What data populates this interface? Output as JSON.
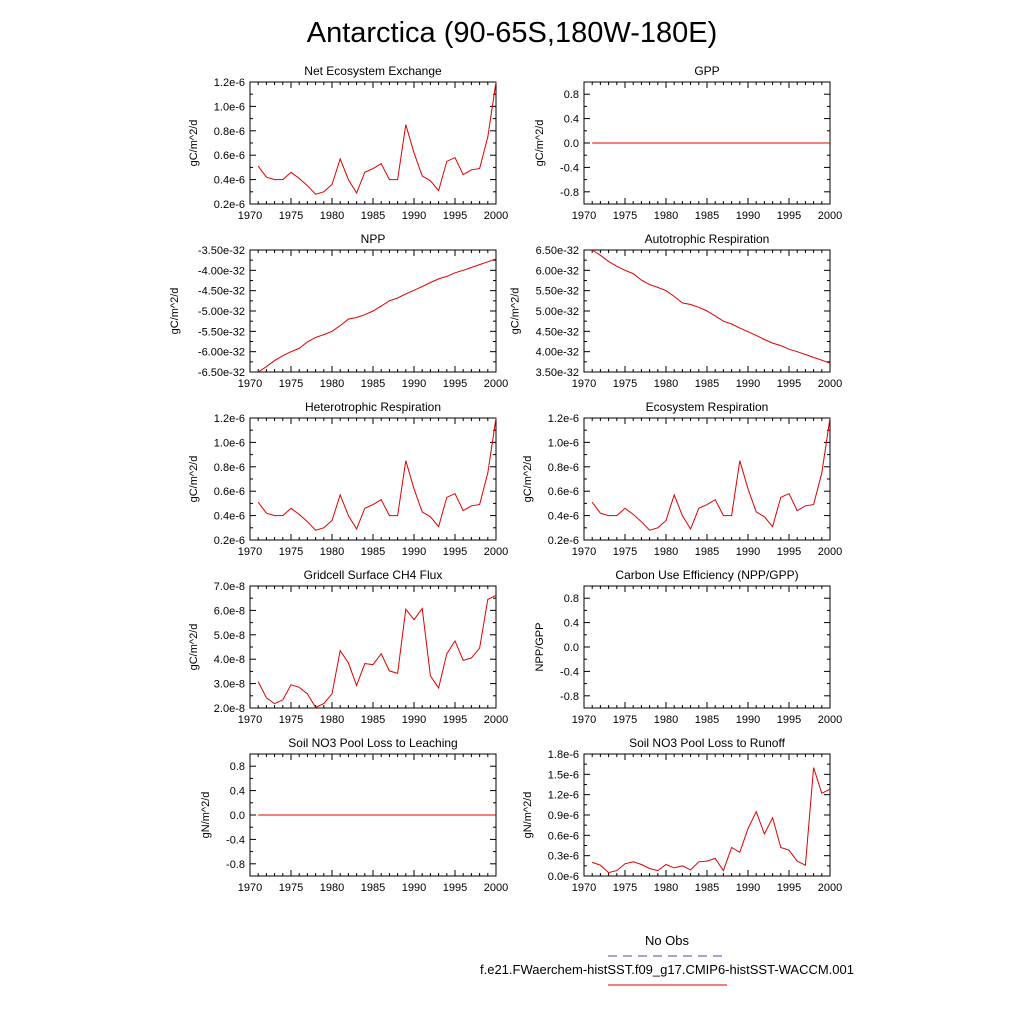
{
  "figure": {
    "title": "Antarctica (90-65S,180W-180E)"
  },
  "legend": [
    {
      "label": "No Obs",
      "color": "#4444cc",
      "dash": true
    },
    {
      "label": "f.e21.FWaerchem-histSST.f09_g17.CMIP6-histSST-WACCM.001",
      "color": "#dd0000",
      "dash": false
    }
  ],
  "series_color": "#dd0000",
  "chart_data": [
    {
      "type": "line",
      "title": "Net Ecosystem Exchange",
      "ylabel": "gC/m^2/d",
      "xlim": [
        1970,
        2000
      ],
      "xticks": [
        1970,
        1975,
        1980,
        1985,
        1990,
        1995,
        2000
      ],
      "ylim": [
        2e-07,
        1.2e-06
      ],
      "yticks": [
        2e-07,
        4e-07,
        6e-07,
        8e-07,
        1e-06,
        1.2e-06
      ],
      "ytick_labels": [
        "0.2e-6",
        "0.4e-6",
        "0.6e-6",
        "0.8e-6",
        "1.0e-6",
        "1.2e-6"
      ],
      "x": [
        1971,
        1972,
        1973,
        1974,
        1975,
        1976,
        1977,
        1978,
        1979,
        1980,
        1981,
        1982,
        1983,
        1984,
        1985,
        1986,
        1987,
        1988,
        1989,
        1990,
        1991,
        1992,
        1993,
        1994,
        1995,
        1996,
        1997,
        1998,
        1999,
        2000
      ],
      "y": [
        5.1e-07,
        4.2e-07,
        4e-07,
        4e-07,
        4.6e-07,
        4.1e-07,
        3.5e-07,
        2.8e-07,
        3e-07,
        3.6e-07,
        5.7e-07,
        4e-07,
        2.9e-07,
        4.6e-07,
        4.9e-07,
        5.3e-07,
        4e-07,
        4e-07,
        8.5e-07,
        6.2e-07,
        4.3e-07,
        3.9e-07,
        3.1e-07,
        5.5e-07,
        5.8e-07,
        4.4e-07,
        4.8e-07,
        4.9e-07,
        7.5e-07,
        1.2e-06
      ]
    },
    {
      "type": "line",
      "title": "GPP",
      "ylabel": "gC/m^2/d",
      "xlim": [
        1970,
        2000
      ],
      "xticks": [
        1970,
        1975,
        1980,
        1985,
        1990,
        1995,
        2000
      ],
      "ylim": [
        -1.0,
        1.0
      ],
      "yticks": [
        -0.8,
        -0.4,
        0.0,
        0.4,
        0.8
      ],
      "ytick_labels": [
        "-0.8",
        "-0.4",
        "0.0",
        "0.4",
        "0.8"
      ],
      "x": [
        1971,
        2000
      ],
      "y": [
        0,
        0
      ]
    },
    {
      "type": "line",
      "title": "NPP",
      "ylabel": "gC/m^2/d",
      "xlim": [
        1970,
        2000
      ],
      "xticks": [
        1970,
        1975,
        1980,
        1985,
        1990,
        1995,
        2000
      ],
      "ylim": [
        -6.5e-32,
        -3.5e-32
      ],
      "yticks": [
        -6.5e-32,
        -6e-32,
        -5.5e-32,
        -5e-32,
        -4.5e-32,
        -4e-32,
        -3.5e-32
      ],
      "ytick_labels": [
        "-6.50e-32",
        "-6.00e-32",
        "-5.50e-32",
        "-5.00e-32",
        "-4.50e-32",
        "-4.00e-32",
        "-3.50e-32"
      ],
      "x": [
        1971,
        1972,
        1973,
        1974,
        1975,
        1976,
        1977,
        1978,
        1979,
        1980,
        1981,
        1982,
        1983,
        1984,
        1985,
        1986,
        1987,
        1988,
        1989,
        1990,
        1991,
        1992,
        1993,
        1994,
        1995,
        1996,
        1997,
        1998,
        1999,
        2000
      ],
      "y": [
        -6.5e-32,
        -6.37e-32,
        -6.22e-32,
        -6.1e-32,
        -6e-32,
        -5.92e-32,
        -5.76e-32,
        -5.65e-32,
        -5.58e-32,
        -5.5e-32,
        -5.36e-32,
        -5.2e-32,
        -5.16e-32,
        -5.09e-32,
        -5e-32,
        -4.88e-32,
        -4.75e-32,
        -4.68e-32,
        -4.58e-32,
        -4.49e-32,
        -4.4e-32,
        -4.3e-32,
        -4.21e-32,
        -4.15e-32,
        -4.06e-32,
        -4e-32,
        -3.93e-32,
        -3.86e-32,
        -3.79e-32,
        -3.72e-32
      ]
    },
    {
      "type": "line",
      "title": "Autotrophic Respiration",
      "ylabel": "gC/m^2/d",
      "xlim": [
        1970,
        2000
      ],
      "xticks": [
        1970,
        1975,
        1980,
        1985,
        1990,
        1995,
        2000
      ],
      "ylim": [
        3.5e-32,
        6.5e-32
      ],
      "yticks": [
        3.5e-32,
        4e-32,
        4.5e-32,
        5e-32,
        5.5e-32,
        6e-32,
        6.5e-32
      ],
      "ytick_labels": [
        "3.50e-32",
        "4.00e-32",
        "4.50e-32",
        "5.00e-32",
        "5.50e-32",
        "6.00e-32",
        "6.50e-32"
      ],
      "x": [
        1971,
        1972,
        1973,
        1974,
        1975,
        1976,
        1977,
        1978,
        1979,
        1980,
        1981,
        1982,
        1983,
        1984,
        1985,
        1986,
        1987,
        1988,
        1989,
        1990,
        1991,
        1992,
        1993,
        1994,
        1995,
        1996,
        1997,
        1998,
        1999,
        2000
      ],
      "y": [
        6.5e-32,
        6.37e-32,
        6.22e-32,
        6.1e-32,
        6e-32,
        5.92e-32,
        5.76e-32,
        5.65e-32,
        5.58e-32,
        5.5e-32,
        5.36e-32,
        5.2e-32,
        5.16e-32,
        5.09e-32,
        5e-32,
        4.88e-32,
        4.75e-32,
        4.68e-32,
        4.58e-32,
        4.49e-32,
        4.4e-32,
        4.3e-32,
        4.21e-32,
        4.15e-32,
        4.06e-32,
        4e-32,
        3.93e-32,
        3.86e-32,
        3.79e-32,
        3.72e-32
      ]
    },
    {
      "type": "line",
      "title": "Heterotrophic Respiration",
      "ylabel": "gC/m^2/d",
      "xlim": [
        1970,
        2000
      ],
      "xticks": [
        1970,
        1975,
        1980,
        1985,
        1990,
        1995,
        2000
      ],
      "ylim": [
        2e-07,
        1.2e-06
      ],
      "yticks": [
        2e-07,
        4e-07,
        6e-07,
        8e-07,
        1e-06,
        1.2e-06
      ],
      "ytick_labels": [
        "0.2e-6",
        "0.4e-6",
        "0.6e-6",
        "0.8e-6",
        "1.0e-6",
        "1.2e-6"
      ],
      "x": [
        1971,
        1972,
        1973,
        1974,
        1975,
        1976,
        1977,
        1978,
        1979,
        1980,
        1981,
        1982,
        1983,
        1984,
        1985,
        1986,
        1987,
        1988,
        1989,
        1990,
        1991,
        1992,
        1993,
        1994,
        1995,
        1996,
        1997,
        1998,
        1999,
        2000
      ],
      "y": [
        5.1e-07,
        4.2e-07,
        4e-07,
        4e-07,
        4.6e-07,
        4.1e-07,
        3.5e-07,
        2.8e-07,
        3e-07,
        3.6e-07,
        5.7e-07,
        4e-07,
        2.9e-07,
        4.6e-07,
        4.9e-07,
        5.3e-07,
        4e-07,
        4e-07,
        8.5e-07,
        6.2e-07,
        4.3e-07,
        3.9e-07,
        3.1e-07,
        5.5e-07,
        5.8e-07,
        4.4e-07,
        4.8e-07,
        4.9e-07,
        7.5e-07,
        1.2e-06
      ]
    },
    {
      "type": "line",
      "title": "Ecosystem Respiration",
      "ylabel": "gC/m^2/d",
      "xlim": [
        1970,
        2000
      ],
      "xticks": [
        1970,
        1975,
        1980,
        1985,
        1990,
        1995,
        2000
      ],
      "ylim": [
        2e-07,
        1.2e-06
      ],
      "yticks": [
        2e-07,
        4e-07,
        6e-07,
        8e-07,
        1e-06,
        1.2e-06
      ],
      "ytick_labels": [
        "0.2e-6",
        "0.4e-6",
        "0.6e-6",
        "0.8e-6",
        "1.0e-6",
        "1.2e-6"
      ],
      "x": [
        1971,
        1972,
        1973,
        1974,
        1975,
        1976,
        1977,
        1978,
        1979,
        1980,
        1981,
        1982,
        1983,
        1984,
        1985,
        1986,
        1987,
        1988,
        1989,
        1990,
        1991,
        1992,
        1993,
        1994,
        1995,
        1996,
        1997,
        1998,
        1999,
        2000
      ],
      "y": [
        5.1e-07,
        4.2e-07,
        4e-07,
        4e-07,
        4.6e-07,
        4.1e-07,
        3.5e-07,
        2.8e-07,
        3e-07,
        3.6e-07,
        5.7e-07,
        4e-07,
        2.9e-07,
        4.6e-07,
        4.9e-07,
        5.3e-07,
        4e-07,
        4e-07,
        8.5e-07,
        6.2e-07,
        4.3e-07,
        3.9e-07,
        3.1e-07,
        5.5e-07,
        5.8e-07,
        4.4e-07,
        4.8e-07,
        4.9e-07,
        7.5e-07,
        1.2e-06
      ]
    },
    {
      "type": "line",
      "title": "Gridcell Surface CH4 Flux",
      "ylabel": "gC/m^2/d",
      "xlim": [
        1970,
        2000
      ],
      "xticks": [
        1970,
        1975,
        1980,
        1985,
        1990,
        1995,
        2000
      ],
      "ylim": [
        2e-08,
        7e-08
      ],
      "yticks": [
        2e-08,
        3e-08,
        4e-08,
        5e-08,
        6e-08,
        7e-08
      ],
      "ytick_labels": [
        "2.0e-8",
        "3.0e-8",
        "4.0e-8",
        "5.0e-8",
        "6.0e-8",
        "7.0e-8"
      ],
      "x": [
        1971,
        1972,
        1973,
        1974,
        1975,
        1976,
        1977,
        1978,
        1979,
        1980,
        1981,
        1982,
        1983,
        1984,
        1985,
        1986,
        1987,
        1988,
        1989,
        1990,
        1991,
        1992,
        1993,
        1994,
        1995,
        1996,
        1997,
        1998,
        1999,
        2000
      ],
      "y": [
        3.08e-08,
        2.42e-08,
        2.18e-08,
        2.33e-08,
        2.95e-08,
        2.85e-08,
        2.58e-08,
        2.02e-08,
        2.18e-08,
        2.58e-08,
        4.35e-08,
        3.85e-08,
        2.92e-08,
        3.82e-08,
        3.78e-08,
        4.22e-08,
        3.52e-08,
        3.42e-08,
        6.05e-08,
        5.62e-08,
        6.08e-08,
        3.32e-08,
        2.82e-08,
        4.22e-08,
        4.75e-08,
        3.95e-08,
        4.05e-08,
        4.45e-08,
        6.45e-08,
        6.62e-08
      ]
    },
    {
      "type": "line",
      "title": "Carbon Use Efficiency (NPP/GPP)",
      "ylabel": "NPP/GPP",
      "xlim": [
        1970,
        2000
      ],
      "xticks": [
        1970,
        1975,
        1980,
        1985,
        1990,
        1995,
        2000
      ],
      "ylim": [
        -1.0,
        1.0
      ],
      "yticks": [
        -0.8,
        -0.4,
        0.0,
        0.4,
        0.8
      ],
      "ytick_labels": [
        "-0.8",
        "-0.4",
        "0.0",
        "0.4",
        "0.8"
      ],
      "x": [],
      "y": []
    },
    {
      "type": "line",
      "title": "Soil NO3 Pool Loss to Leaching",
      "ylabel": "gN/m^2/d",
      "xlim": [
        1970,
        2000
      ],
      "xticks": [
        1970,
        1975,
        1980,
        1985,
        1990,
        1995,
        2000
      ],
      "ylim": [
        -1.0,
        1.0
      ],
      "yticks": [
        -0.8,
        -0.4,
        0.0,
        0.4,
        0.8
      ],
      "ytick_labels": [
        "-0.8",
        "-0.4",
        "0.0",
        "0.4",
        "0.8"
      ],
      "x": [
        1971,
        2000
      ],
      "y": [
        0,
        0
      ]
    },
    {
      "type": "line",
      "title": "Soil NO3 Pool Loss to Runoff",
      "ylabel": "gN/m^2/d",
      "xlim": [
        1970,
        2000
      ],
      "xticks": [
        1970,
        1975,
        1980,
        1985,
        1990,
        1995,
        2000
      ],
      "ylim": [
        0.0,
        1.8e-06
      ],
      "yticks": [
        0.0,
        3e-07,
        6e-07,
        9e-07,
        1.2e-06,
        1.5e-06,
        1.8e-06
      ],
      "ytick_labels": [
        "0.0e-6",
        "0.3e-6",
        "0.6e-6",
        "0.9e-6",
        "1.2e-6",
        "1.5e-6",
        "1.8e-6"
      ],
      "x": [
        1971,
        1972,
        1973,
        1974,
        1975,
        1976,
        1977,
        1978,
        1979,
        1980,
        1981,
        1982,
        1983,
        1984,
        1985,
        1986,
        1987,
        1988,
        1989,
        1990,
        1991,
        1992,
        1993,
        1994,
        1995,
        1996,
        1997,
        1998,
        1999,
        2000
      ],
      "y": [
        2e-07,
        1.6e-07,
        5e-08,
        8e-08,
        1.8e-07,
        2.1e-07,
        1.7e-07,
        1.1e-07,
        8e-08,
        1.7e-07,
        1.2e-07,
        1.5e-07,
        9e-08,
        2.1e-07,
        2.2e-07,
        2.6e-07,
        8e-08,
        4.2e-07,
        3.5e-07,
        7e-07,
        9.5e-07,
        6.2e-07,
        8.6e-07,
        4.2e-07,
        3.8e-07,
        2.2e-07,
        1.6e-07,
        1.6e-06,
        1.22e-06,
        1.28e-06
      ]
    }
  ]
}
